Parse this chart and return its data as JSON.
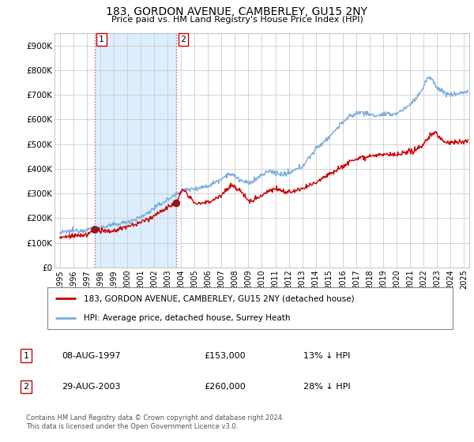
{
  "title": "183, GORDON AVENUE, CAMBERLEY, GU15 2NY",
  "subtitle": "Price paid vs. HM Land Registry's House Price Index (HPI)",
  "ylabel_ticks": [
    "£0",
    "£100K",
    "£200K",
    "£300K",
    "£400K",
    "£500K",
    "£600K",
    "£700K",
    "£800K",
    "£900K"
  ],
  "ytick_values": [
    0,
    100000,
    200000,
    300000,
    400000,
    500000,
    600000,
    700000,
    800000,
    900000
  ],
  "ylim": [
    0,
    950000
  ],
  "xlim_start": 1994.6,
  "xlim_end": 2025.4,
  "purchase1_year": 1997.6,
  "purchase1_price": 153000,
  "purchase1_label": "1",
  "purchase2_year": 2003.65,
  "purchase2_price": 260000,
  "purchase2_label": "2",
  "line1_color": "#cc0000",
  "line2_color": "#7aaddb",
  "dot_color": "#8b1a1a",
  "vline_color": "#e06060",
  "shade_color": "#ddeeff",
  "grid_color": "#cccccc",
  "bg_color": "#ffffff",
  "legend1_label": "183, GORDON AVENUE, CAMBERLEY, GU15 2NY (detached house)",
  "legend2_label": "HPI: Average price, detached house, Surrey Heath",
  "footnote": "Contains HM Land Registry data © Crown copyright and database right 2024.\nThis data is licensed under the Open Government Licence v3.0.",
  "table_row1": [
    "1",
    "08-AUG-1997",
    "£153,000",
    "13% ↓ HPI"
  ],
  "table_row2": [
    "2",
    "29-AUG-2003",
    "£260,000",
    "28% ↓ HPI"
  ]
}
